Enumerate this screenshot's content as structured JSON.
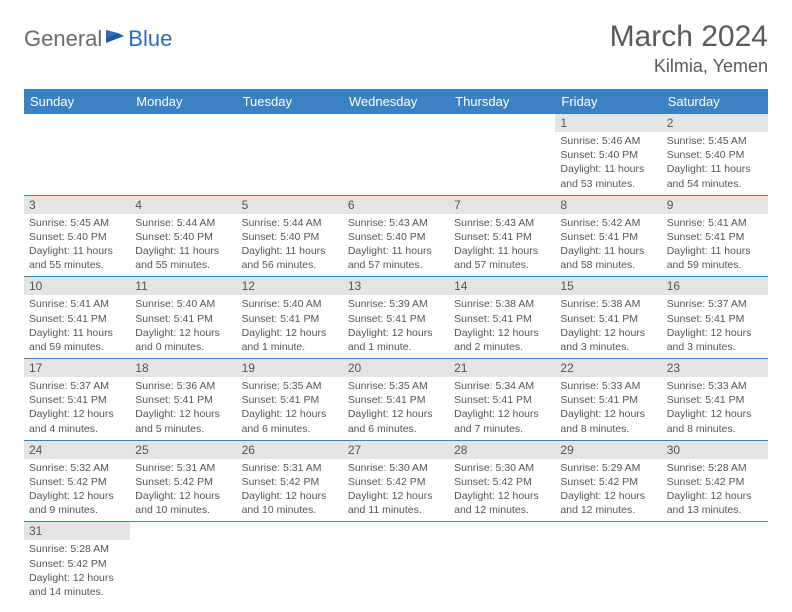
{
  "logo": {
    "part1": "General",
    "part2": "Blue"
  },
  "title": "March 2024",
  "location": "Kilmia, Yemen",
  "colors": {
    "header_bg": "#3b82c4",
    "header_text": "#ffffff",
    "daynum_bg": "#e4e4e4",
    "border": "#3b82c4",
    "text": "#555555",
    "logo_gray": "#6b6b6b",
    "logo_blue": "#2a6db8"
  },
  "day_headers": [
    "Sunday",
    "Monday",
    "Tuesday",
    "Wednesday",
    "Thursday",
    "Friday",
    "Saturday"
  ],
  "weeks": [
    [
      null,
      null,
      null,
      null,
      null,
      {
        "n": "1",
        "sr": "Sunrise: 5:46 AM",
        "ss": "Sunset: 5:40 PM",
        "dl": "Daylight: 11 hours and 53 minutes."
      },
      {
        "n": "2",
        "sr": "Sunrise: 5:45 AM",
        "ss": "Sunset: 5:40 PM",
        "dl": "Daylight: 11 hours and 54 minutes."
      }
    ],
    [
      {
        "n": "3",
        "sr": "Sunrise: 5:45 AM",
        "ss": "Sunset: 5:40 PM",
        "dl": "Daylight: 11 hours and 55 minutes."
      },
      {
        "n": "4",
        "sr": "Sunrise: 5:44 AM",
        "ss": "Sunset: 5:40 PM",
        "dl": "Daylight: 11 hours and 55 minutes."
      },
      {
        "n": "5",
        "sr": "Sunrise: 5:44 AM",
        "ss": "Sunset: 5:40 PM",
        "dl": "Daylight: 11 hours and 56 minutes."
      },
      {
        "n": "6",
        "sr": "Sunrise: 5:43 AM",
        "ss": "Sunset: 5:40 PM",
        "dl": "Daylight: 11 hours and 57 minutes."
      },
      {
        "n": "7",
        "sr": "Sunrise: 5:43 AM",
        "ss": "Sunset: 5:41 PM",
        "dl": "Daylight: 11 hours and 57 minutes."
      },
      {
        "n": "8",
        "sr": "Sunrise: 5:42 AM",
        "ss": "Sunset: 5:41 PM",
        "dl": "Daylight: 11 hours and 58 minutes."
      },
      {
        "n": "9",
        "sr": "Sunrise: 5:41 AM",
        "ss": "Sunset: 5:41 PM",
        "dl": "Daylight: 11 hours and 59 minutes."
      }
    ],
    [
      {
        "n": "10",
        "sr": "Sunrise: 5:41 AM",
        "ss": "Sunset: 5:41 PM",
        "dl": "Daylight: 11 hours and 59 minutes."
      },
      {
        "n": "11",
        "sr": "Sunrise: 5:40 AM",
        "ss": "Sunset: 5:41 PM",
        "dl": "Daylight: 12 hours and 0 minutes."
      },
      {
        "n": "12",
        "sr": "Sunrise: 5:40 AM",
        "ss": "Sunset: 5:41 PM",
        "dl": "Daylight: 12 hours and 1 minute."
      },
      {
        "n": "13",
        "sr": "Sunrise: 5:39 AM",
        "ss": "Sunset: 5:41 PM",
        "dl": "Daylight: 12 hours and 1 minute."
      },
      {
        "n": "14",
        "sr": "Sunrise: 5:38 AM",
        "ss": "Sunset: 5:41 PM",
        "dl": "Daylight: 12 hours and 2 minutes."
      },
      {
        "n": "15",
        "sr": "Sunrise: 5:38 AM",
        "ss": "Sunset: 5:41 PM",
        "dl": "Daylight: 12 hours and 3 minutes."
      },
      {
        "n": "16",
        "sr": "Sunrise: 5:37 AM",
        "ss": "Sunset: 5:41 PM",
        "dl": "Daylight: 12 hours and 3 minutes."
      }
    ],
    [
      {
        "n": "17",
        "sr": "Sunrise: 5:37 AM",
        "ss": "Sunset: 5:41 PM",
        "dl": "Daylight: 12 hours and 4 minutes."
      },
      {
        "n": "18",
        "sr": "Sunrise: 5:36 AM",
        "ss": "Sunset: 5:41 PM",
        "dl": "Daylight: 12 hours and 5 minutes."
      },
      {
        "n": "19",
        "sr": "Sunrise: 5:35 AM",
        "ss": "Sunset: 5:41 PM",
        "dl": "Daylight: 12 hours and 6 minutes."
      },
      {
        "n": "20",
        "sr": "Sunrise: 5:35 AM",
        "ss": "Sunset: 5:41 PM",
        "dl": "Daylight: 12 hours and 6 minutes."
      },
      {
        "n": "21",
        "sr": "Sunrise: 5:34 AM",
        "ss": "Sunset: 5:41 PM",
        "dl": "Daylight: 12 hours and 7 minutes."
      },
      {
        "n": "22",
        "sr": "Sunrise: 5:33 AM",
        "ss": "Sunset: 5:41 PM",
        "dl": "Daylight: 12 hours and 8 minutes."
      },
      {
        "n": "23",
        "sr": "Sunrise: 5:33 AM",
        "ss": "Sunset: 5:41 PM",
        "dl": "Daylight: 12 hours and 8 minutes."
      }
    ],
    [
      {
        "n": "24",
        "sr": "Sunrise: 5:32 AM",
        "ss": "Sunset: 5:42 PM",
        "dl": "Daylight: 12 hours and 9 minutes."
      },
      {
        "n": "25",
        "sr": "Sunrise: 5:31 AM",
        "ss": "Sunset: 5:42 PM",
        "dl": "Daylight: 12 hours and 10 minutes."
      },
      {
        "n": "26",
        "sr": "Sunrise: 5:31 AM",
        "ss": "Sunset: 5:42 PM",
        "dl": "Daylight: 12 hours and 10 minutes."
      },
      {
        "n": "27",
        "sr": "Sunrise: 5:30 AM",
        "ss": "Sunset: 5:42 PM",
        "dl": "Daylight: 12 hours and 11 minutes."
      },
      {
        "n": "28",
        "sr": "Sunrise: 5:30 AM",
        "ss": "Sunset: 5:42 PM",
        "dl": "Daylight: 12 hours and 12 minutes."
      },
      {
        "n": "29",
        "sr": "Sunrise: 5:29 AM",
        "ss": "Sunset: 5:42 PM",
        "dl": "Daylight: 12 hours and 12 minutes."
      },
      {
        "n": "30",
        "sr": "Sunrise: 5:28 AM",
        "ss": "Sunset: 5:42 PM",
        "dl": "Daylight: 12 hours and 13 minutes."
      }
    ],
    [
      {
        "n": "31",
        "sr": "Sunrise: 5:28 AM",
        "ss": "Sunset: 5:42 PM",
        "dl": "Daylight: 12 hours and 14 minutes."
      },
      null,
      null,
      null,
      null,
      null,
      null
    ]
  ]
}
